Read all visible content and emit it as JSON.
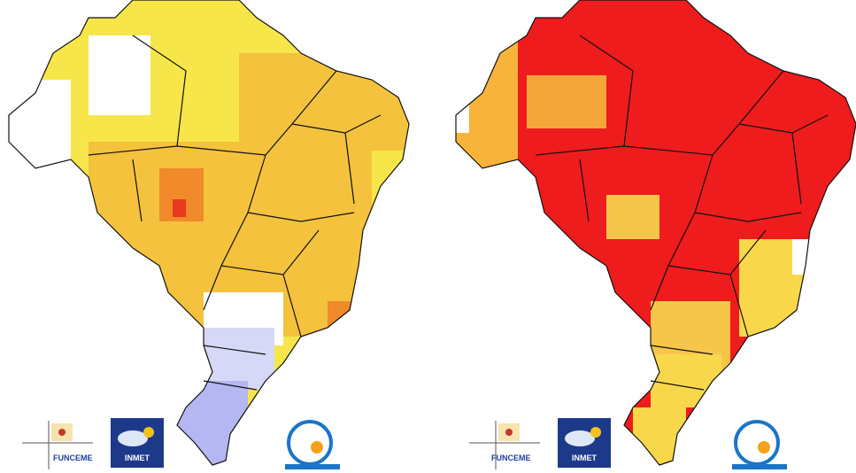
{
  "panels": [
    {
      "logos": {
        "funceme": "FUNCEME",
        "inmet": "INMET"
      }
    },
    {
      "logos": {
        "funceme": "FUNCEME",
        "inmet": "INMET"
      }
    }
  ]
}
